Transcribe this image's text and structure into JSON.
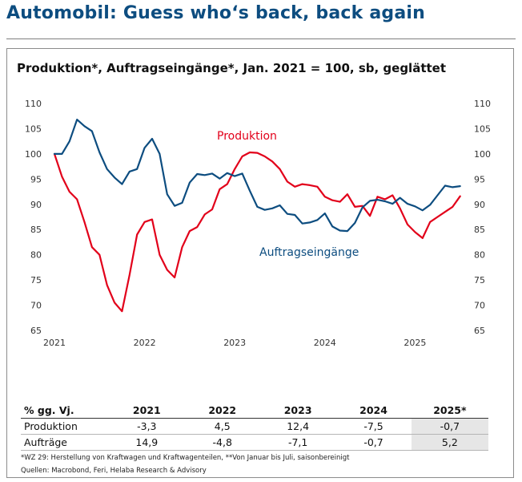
{
  "headline": "Automobil: Guess who‘s back, back again",
  "chart_data": {
    "type": "line",
    "title": "Produktion*, Auftragseingänge*, Jan. 2021 = 100, sb, geglättet",
    "x_ticks": [
      "2021",
      "2022",
      "2023",
      "2024",
      "2025"
    ],
    "y_ticks": [
      65,
      70,
      75,
      80,
      85,
      90,
      95,
      100,
      105,
      110
    ],
    "ylim": [
      65,
      110
    ],
    "y_axis_both_sides": true,
    "grid": false,
    "x_start": "2021-01",
    "series": [
      {
        "name": "Produktion",
        "color": "#e2001a",
        "values": [
          100,
          95.5,
          92.5,
          91,
          86.5,
          81.5,
          80,
          74,
          70.5,
          68.8,
          76,
          84,
          86.5,
          87,
          80,
          77,
          75.5,
          81.5,
          84.7,
          85.5,
          88,
          89,
          93,
          94,
          97,
          99.5,
          100.3,
          100.2,
          99.5,
          98.5,
          97,
          94.5,
          93.5,
          94,
          93.8,
          93.5,
          91.5,
          90.8,
          90.5,
          92,
          89.5,
          89.7,
          87.7,
          91.5,
          91,
          91.8,
          89.2,
          86,
          84.5,
          83.3,
          86.5,
          87.5,
          88.5,
          89.5,
          91.6
        ]
      },
      {
        "name": "Auftragseingänge",
        "color": "#0d4d80",
        "values": [
          100,
          100,
          102.5,
          106.8,
          105.5,
          104.5,
          100.3,
          97,
          95.3,
          94,
          96.5,
          97,
          101.2,
          103,
          100,
          92,
          89.7,
          90.3,
          94.3,
          96,
          95.8,
          96.1,
          95.1,
          96.2,
          95.6,
          96.1,
          92.7,
          89.5,
          88.9,
          89.2,
          89.8,
          88.1,
          87.9,
          86.2,
          86.4,
          86.9,
          88.2,
          85.6,
          84.8,
          84.7,
          86.3,
          89.4,
          90.7,
          90.9,
          90.6,
          90.1,
          91.3,
          90.1,
          89.6,
          88.8,
          89.9,
          91.8,
          93.7,
          93.4,
          93.6
        ]
      }
    ]
  },
  "labels": {
    "produktion": "Produktion",
    "auftraege": "Auftragseingänge"
  },
  "table": {
    "header": [
      "% gg. Vj.",
      "2021",
      "2022",
      "2023",
      "2024",
      "2025*"
    ],
    "rows": [
      {
        "label": "Produktion",
        "values": [
          "-3,3",
          "4,5",
          "12,4",
          "-7,5",
          "-0,7"
        ]
      },
      {
        "label": "Aufträge",
        "values": [
          "14,9",
          "-4,8",
          "-7,1",
          "-0,7",
          "5,2"
        ]
      }
    ]
  },
  "footnote": "*WZ 29: Herstellung von Kraftwagen und Kraftwagenteilen, **Von Januar bis Juli, saisonbereinigt",
  "sources": "Quellen: Macrobond, Feri, Helaba Research & Advisory"
}
